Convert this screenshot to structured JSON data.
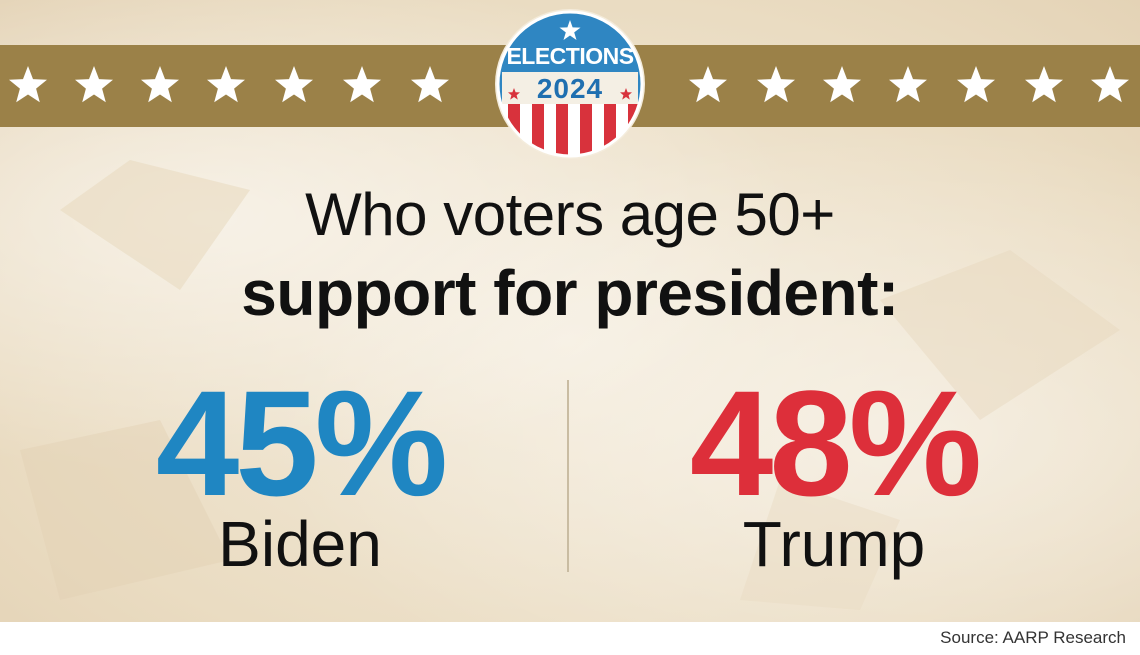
{
  "badge": {
    "line1": "ELECTIONS",
    "line2": "2024"
  },
  "title": {
    "line1": "Who voters age 50+",
    "line2": "support for president:"
  },
  "chart_data": {
    "type": "table",
    "categories": [
      "Biden",
      "Trump"
    ],
    "values": [
      45,
      48
    ],
    "value_labels": [
      "45%",
      "48%"
    ],
    "unit": "%"
  },
  "colors": {
    "biden": "#1f86c2",
    "trump": "#dd2f3a",
    "band": "#9b8148"
  },
  "source": "Source: AARP Research"
}
